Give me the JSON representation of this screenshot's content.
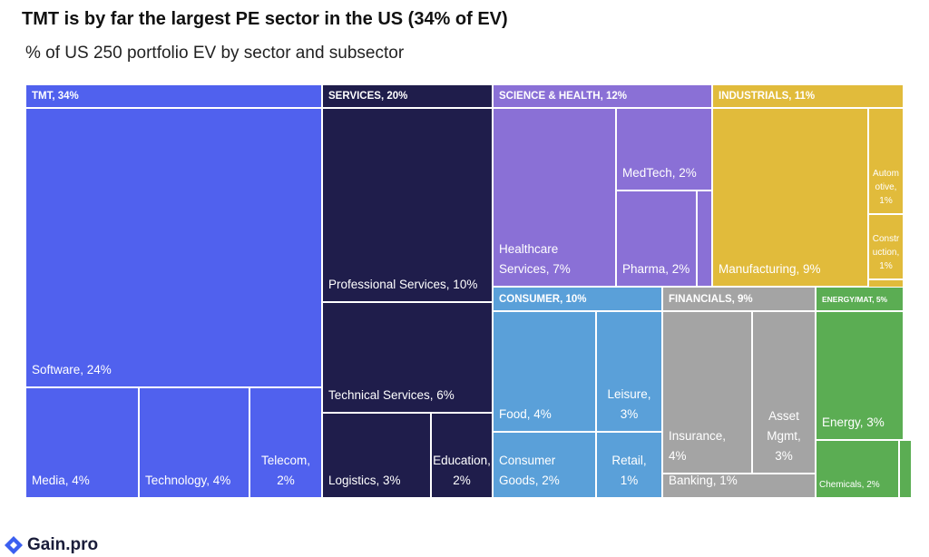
{
  "chart_data": {
    "type": "treemap",
    "title": "TMT is by far the largest PE sector in the US (34% of EV)",
    "subtitle": "% of US 250 portfolio EV by sector and subsector",
    "series": [
      {
        "label": "TMT, 34%",
        "value": 34,
        "color": "#5061ee",
        "children": [
          {
            "label": "Software, 24%",
            "value": 24
          },
          {
            "label": "Media, 4%",
            "value": 4
          },
          {
            "label": "Technology, 4%",
            "value": 4
          },
          {
            "label": "Telecom, 2%",
            "value": 2
          }
        ]
      },
      {
        "label": "SERVICES, 20%",
        "value": 20,
        "color": "#1f1d4b",
        "children": [
          {
            "label": "Professional Services, 10%",
            "value": 10
          },
          {
            "label": "Technical Services, 6%",
            "value": 6
          },
          {
            "label": "Logistics, 3%",
            "value": 3
          },
          {
            "label": "Education, 2%",
            "value": 2
          }
        ]
      },
      {
        "label": "SCIENCE & HEALTH, 12%",
        "value": 12,
        "color": "#8a70d6",
        "children": [
          {
            "label": "Healthcare Services, 7%",
            "value": 7
          },
          {
            "label": "MedTech, 2%",
            "value": 2
          },
          {
            "label": "Pharma, 2%",
            "value": 2
          },
          {
            "label": null,
            "value": 0.4
          }
        ]
      },
      {
        "label": "INDUSTRIALS, 11%",
        "value": 11,
        "color": "#e1bb3b",
        "children": [
          {
            "label": "Manufacturing, 9%",
            "value": 9
          },
          {
            "label": "Automotive, 1%",
            "value": 1
          },
          {
            "label": "Construction, 1%",
            "value": 1
          },
          {
            "label": null,
            "value": 0.1
          }
        ]
      },
      {
        "label": "CONSUMER, 10%",
        "value": 10,
        "color": "#5aa0d9",
        "children": [
          {
            "label": "Food, 4%",
            "value": 4
          },
          {
            "label": "Leisure, 3%",
            "value": 3
          },
          {
            "label": "Consumer Goods, 2%",
            "value": 2
          },
          {
            "label": "Retail, 1%",
            "value": 1
          }
        ]
      },
      {
        "label": "FINANCIALS, 9%",
        "value": 9,
        "color": "#a4a4a4",
        "children": [
          {
            "label": "Insurance, 4%",
            "value": 4
          },
          {
            "label": "Asset Mgmt, 3%",
            "value": 3
          },
          {
            "label": "Banking, 1%",
            "value": 1
          }
        ]
      },
      {
        "label": "ENERGY/MAT, 5%",
        "value": 5,
        "color": "#5bad53",
        "children": [
          {
            "label": "Energy, 3%",
            "value": 3
          },
          {
            "label": "Chemicals, 2%",
            "value": 2
          },
          {
            "label": null,
            "value": 0.1
          }
        ]
      }
    ]
  },
  "brand": "Gain.pro"
}
